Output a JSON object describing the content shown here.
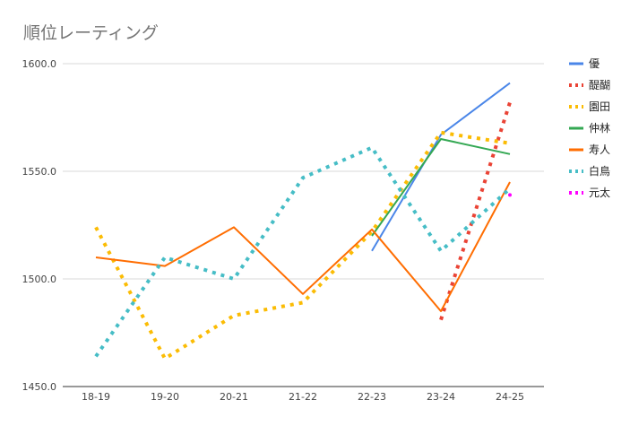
{
  "chart_data": {
    "type": "line",
    "title": "順位レーティング",
    "xlabel": "",
    "ylabel": "",
    "categories": [
      "18-19",
      "19-20",
      "20-21",
      "21-22",
      "22-23",
      "23-24",
      "24-25"
    ],
    "ylim": [
      1450,
      1600
    ],
    "yticks": [
      1450,
      1500,
      1550,
      1600
    ],
    "ytick_labels": [
      "1450.0",
      "1500.0",
      "1550.0",
      "1600.0"
    ],
    "grid": true,
    "legend_position": "right",
    "series": [
      {
        "name": "優",
        "color": "#4a86e8",
        "dashed": false,
        "values": [
          null,
          null,
          null,
          null,
          1513,
          1567,
          1591
        ]
      },
      {
        "name": "醍醐",
        "color": "#ea4335",
        "dashed": true,
        "values": [
          null,
          null,
          null,
          null,
          null,
          1481,
          1582
        ]
      },
      {
        "name": "園田",
        "color": "#fbbc04",
        "dashed": true,
        "values": [
          1524,
          1463,
          1483,
          1489,
          1522,
          1568,
          1563
        ]
      },
      {
        "name": "仲林",
        "color": "#34a853",
        "dashed": false,
        "values": [
          null,
          null,
          null,
          null,
          1520,
          1565,
          1558
        ]
      },
      {
        "name": "寿人",
        "color": "#ff6d01",
        "dashed": false,
        "values": [
          1510,
          1506,
          1524,
          1493,
          1523,
          1485,
          1545
        ]
      },
      {
        "name": "白鳥",
        "color": "#46bdc6",
        "dashed": true,
        "values": [
          1464,
          1510,
          1500,
          1547,
          1561,
          1513,
          1542
        ]
      },
      {
        "name": "元太",
        "color": "#ff00ff",
        "dashed": true,
        "values": [
          null,
          null,
          null,
          null,
          null,
          null,
          1539
        ]
      }
    ]
  }
}
